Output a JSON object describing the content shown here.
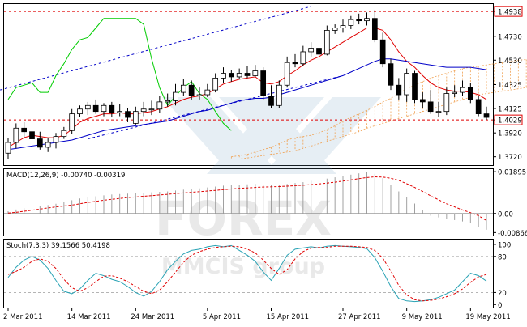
{
  "watermark": {
    "brand": "FOREX",
    "sub": "MMCIS group"
  },
  "chart_data": [
    {
      "type": "candlestick",
      "panel": "price",
      "ylim": [
        1.365,
        1.5
      ],
      "yticks": [
        "1.4938",
        "1.4730",
        "1.4530",
        "1.4325",
        "1.4125",
        "1.4029",
        "1.3920",
        "1.3720"
      ],
      "highlighted_levels": [
        {
          "label": "1.4938",
          "value": 1.4938
        },
        {
          "label": "1.4029",
          "value": 1.4029
        }
      ],
      "xticks": [
        {
          "label": "2 Mar 2011",
          "i": 0
        },
        {
          "label": "14 Mar 2011",
          "i": 8
        },
        {
          "label": "24 Mar 2011",
          "i": 16
        },
        {
          "label": "5 Apr 2011",
          "i": 25
        },
        {
          "label": "15 Apr 2011",
          "i": 33
        },
        {
          "label": "27 Apr 2011",
          "i": 42
        },
        {
          "label": "9 May 2011",
          "i": 50
        },
        {
          "label": "19 May 2011",
          "i": 58
        }
      ],
      "candles": {
        "open": [
          1.375,
          1.384,
          1.396,
          1.393,
          1.387,
          1.38,
          1.384,
          1.389,
          1.394,
          1.408,
          1.412,
          1.415,
          1.41,
          1.415,
          1.409,
          1.41,
          1.4,
          1.41,
          1.412,
          1.412,
          1.418,
          1.419,
          1.426,
          1.432,
          1.423,
          1.424,
          1.428,
          1.438,
          1.442,
          1.439,
          1.442,
          1.44,
          1.444,
          1.423,
          1.415,
          1.432,
          1.451,
          1.45,
          1.46,
          1.463,
          1.458,
          1.478,
          1.48,
          1.482,
          1.487,
          1.486,
          1.488,
          1.47,
          1.45,
          1.432,
          1.424,
          1.442,
          1.42,
          1.418,
          1.41,
          1.41,
          1.425,
          1.426,
          1.43,
          1.42,
          1.408
        ],
        "high": [
          1.388,
          1.4,
          1.401,
          1.398,
          1.393,
          1.388,
          1.392,
          1.397,
          1.412,
          1.415,
          1.418,
          1.42,
          1.417,
          1.418,
          1.416,
          1.413,
          1.414,
          1.418,
          1.419,
          1.423,
          1.425,
          1.433,
          1.437,
          1.436,
          1.43,
          1.433,
          1.442,
          1.447,
          1.445,
          1.446,
          1.448,
          1.449,
          1.447,
          1.432,
          1.436,
          1.456,
          1.458,
          1.465,
          1.468,
          1.467,
          1.482,
          1.483,
          1.487,
          1.49,
          1.492,
          1.493,
          1.495,
          1.476,
          1.454,
          1.438,
          1.446,
          1.444,
          1.426,
          1.428,
          1.418,
          1.43,
          1.432,
          1.436,
          1.434,
          1.423,
          1.414
        ],
        "low": [
          1.37,
          1.379,
          1.388,
          1.385,
          1.378,
          1.376,
          1.379,
          1.387,
          1.391,
          1.405,
          1.407,
          1.408,
          1.406,
          1.405,
          1.406,
          1.401,
          1.399,
          1.406,
          1.407,
          1.409,
          1.414,
          1.415,
          1.423,
          1.42,
          1.42,
          1.422,
          1.426,
          1.434,
          1.435,
          1.437,
          1.438,
          1.439,
          1.42,
          1.413,
          1.413,
          1.43,
          1.447,
          1.448,
          1.456,
          1.454,
          1.457,
          1.475,
          1.476,
          1.479,
          1.483,
          1.482,
          1.468,
          1.447,
          1.428,
          1.42,
          1.418,
          1.417,
          1.413,
          1.408,
          1.405,
          1.407,
          1.422,
          1.423,
          1.417,
          1.406,
          1.403
        ],
        "close": [
          1.384,
          1.396,
          1.393,
          1.387,
          1.38,
          1.384,
          1.389,
          1.394,
          1.408,
          1.412,
          1.415,
          1.41,
          1.415,
          1.409,
          1.41,
          1.405,
          1.41,
          1.412,
          1.412,
          1.418,
          1.419,
          1.426,
          1.432,
          1.423,
          1.424,
          1.428,
          1.438,
          1.442,
          1.439,
          1.442,
          1.44,
          1.444,
          1.423,
          1.415,
          1.432,
          1.451,
          1.45,
          1.46,
          1.463,
          1.458,
          1.478,
          1.48,
          1.482,
          1.487,
          1.486,
          1.488,
          1.47,
          1.45,
          1.432,
          1.424,
          1.442,
          1.42,
          1.418,
          1.41,
          1.41,
          1.425,
          1.426,
          1.43,
          1.42,
          1.408,
          1.405
        ]
      },
      "series": [
        {
          "color": "#e00000",
          "values": [
            1.38,
            1.384,
            1.388,
            1.39,
            1.389,
            1.388,
            1.388,
            1.39,
            1.395,
            1.401,
            1.404,
            1.406,
            1.408,
            1.408,
            1.409,
            1.408,
            1.408,
            1.409,
            1.41,
            1.412,
            1.414,
            1.417,
            1.42,
            1.422,
            1.423,
            1.425,
            1.429,
            1.433,
            1.435,
            1.437,
            1.438,
            1.439,
            1.434,
            1.433,
            1.435,
            1.44,
            1.444,
            1.449,
            1.453,
            1.456,
            1.46,
            1.464,
            1.468,
            1.472,
            1.476,
            1.48,
            1.48,
            1.478,
            1.47,
            1.46,
            1.452,
            1.447,
            1.44,
            1.434,
            1.43,
            1.428,
            1.427,
            1.427,
            1.426,
            1.424,
            1.42
          ]
        },
        {
          "color": "#0000c8",
          "values": [
            1.378,
            1.379,
            1.38,
            1.381,
            1.382,
            1.383,
            1.384,
            1.385,
            1.386,
            1.388,
            1.39,
            1.392,
            1.394,
            1.395,
            1.396,
            1.397,
            1.398,
            1.399,
            1.4,
            1.401,
            1.402,
            1.404,
            1.406,
            1.408,
            1.41,
            1.411,
            1.413,
            1.415,
            1.417,
            1.419,
            1.42,
            1.421,
            1.421,
            1.422,
            1.424,
            1.426,
            1.428,
            1.43,
            1.432,
            1.434,
            1.436,
            1.438,
            1.44,
            1.443,
            1.446,
            1.449,
            1.452,
            1.454,
            1.454,
            1.453,
            1.452,
            1.451,
            1.45,
            1.449,
            1.448,
            1.447,
            1.447,
            1.447,
            1.447,
            1.446,
            1.445
          ]
        },
        {
          "color": "#00cc00",
          "values": [
            1.42,
            1.43,
            1.432,
            1.434,
            1.426,
            1.426,
            1.44,
            1.45,
            1.462,
            1.47,
            1.472,
            1.48,
            1.488,
            1.488,
            1.488,
            1.488,
            1.488,
            1.483,
            1.454,
            1.43,
            1.415,
            1.423,
            1.43,
            1.435,
            1.425,
            1.42,
            1.41,
            1.4,
            1.394,
            null,
            null,
            null,
            null,
            null,
            null,
            null,
            null,
            null,
            null,
            null,
            null,
            null,
            null,
            null,
            null,
            null,
            null,
            null,
            null,
            null,
            null,
            null,
            null,
            null,
            null,
            null,
            null,
            null,
            null,
            null,
            null
          ]
        }
      ],
      "cloud": {
        "color": "#f0a050",
        "start_index": 28,
        "span_a": [
          1.372,
          1.373,
          1.374,
          1.376,
          1.378,
          1.38,
          1.383,
          1.386,
          1.388,
          1.389,
          1.39,
          1.392,
          1.395,
          1.398,
          1.402,
          1.405,
          1.408,
          1.411,
          1.414,
          1.418,
          1.421,
          1.425,
          1.429,
          1.432,
          1.435,
          1.438,
          1.44,
          1.442,
          1.444,
          1.446,
          1.447,
          1.448,
          1.449,
          1.45,
          1.451,
          1.452,
          1.453,
          1.4535,
          1.454,
          1.454,
          1.454,
          1.454,
          1.4535,
          1.453,
          1.452,
          1.451,
          1.45,
          1.448,
          1.446
        ],
        "span_b": [
          1.37,
          1.37,
          1.371,
          1.372,
          1.373,
          1.374,
          1.375,
          1.376,
          1.377,
          1.379,
          1.381,
          1.383,
          1.385,
          1.387,
          1.389,
          1.391,
          1.393,
          1.396,
          1.398,
          1.4,
          1.402,
          1.404,
          1.406,
          1.408,
          1.41,
          1.412,
          1.414,
          1.416,
          1.418,
          1.42,
          1.422,
          1.424,
          1.425,
          1.426,
          1.427,
          1.428,
          1.429,
          1.43,
          1.431,
          1.432,
          1.432,
          1.433,
          1.433,
          1.434,
          1.434,
          1.434,
          1.434,
          1.434,
          1.434
        ]
      },
      "trend_lines": [
        {
          "color": "#0000c8",
          "from": [
            -1,
            1.428
          ],
          "to": [
            38,
            1.498
          ]
        },
        {
          "color": "#0000c8",
          "from": [
            10,
            1.387
          ],
          "to": [
            42,
            1.44
          ]
        }
      ]
    },
    {
      "type": "histogram",
      "panel": "macd",
      "title": "MACD(12,26,9) -0.00740 -0.00319",
      "ylim": [
        -0.01,
        0.0201
      ],
      "yticks": [
        "0.01895",
        "0.00",
        "-0.00866"
      ],
      "zero_label": "0.00",
      "bar_color": "#a0a0a0",
      "values": [
        0.001,
        0.0018,
        0.0024,
        0.003,
        0.0034,
        0.0038,
        0.0044,
        0.0052,
        0.006,
        0.0068,
        0.0074,
        0.0078,
        0.0082,
        0.0086,
        0.0088,
        0.009,
        0.0092,
        0.0094,
        0.0096,
        0.0098,
        0.01,
        0.0104,
        0.0108,
        0.0112,
        0.0114,
        0.0118,
        0.0122,
        0.0126,
        0.0128,
        0.013,
        0.0132,
        0.0134,
        0.013,
        0.0128,
        0.013,
        0.0134,
        0.0138,
        0.0142,
        0.0148,
        0.0152,
        0.0158,
        0.0164,
        0.017,
        0.0176,
        0.0182,
        0.0188,
        0.018,
        0.016,
        0.013,
        0.01,
        0.0075,
        0.0045,
        0.0015,
        -0.001,
        -0.0018,
        -0.0025,
        -0.003,
        -0.0036,
        -0.0045,
        -0.006,
        -0.0074
      ],
      "signal": {
        "color": "#e00000",
        "values": [
          0.0002,
          0.0005,
          0.001,
          0.0015,
          0.002,
          0.0025,
          0.003,
          0.0034,
          0.0038,
          0.0044,
          0.005,
          0.0055,
          0.006,
          0.0064,
          0.0068,
          0.0072,
          0.0075,
          0.0078,
          0.0081,
          0.0084,
          0.0087,
          0.009,
          0.0093,
          0.0096,
          0.0099,
          0.0102,
          0.0105,
          0.0108,
          0.0111,
          0.0114,
          0.0116,
          0.0118,
          0.012,
          0.0121,
          0.0122,
          0.0124,
          0.0126,
          0.0128,
          0.0131,
          0.0134,
          0.0138,
          0.0142,
          0.0147,
          0.0152,
          0.0158,
          0.0163,
          0.0166,
          0.0165,
          0.016,
          0.015,
          0.0135,
          0.0118,
          0.01,
          0.008,
          0.0062,
          0.0044,
          0.003,
          0.0016,
          0.0004,
          -0.001,
          -0.0032
        ]
      }
    },
    {
      "type": "line",
      "panel": "stoch",
      "title": "Stoch(7,3,3) 39.1566 50.4198",
      "ylim": [
        -5,
        108
      ],
      "yticks": [
        "100",
        "80",
        "20",
        "0"
      ],
      "levels": [
        80,
        20
      ],
      "series": [
        {
          "color": "#2aa3b5",
          "values": [
            45,
            62,
            74,
            80,
            74,
            60,
            40,
            22,
            18,
            26,
            40,
            52,
            48,
            42,
            38,
            30,
            20,
            14,
            22,
            38,
            58,
            72,
            84,
            90,
            92,
            96,
            98,
            96,
            98,
            90,
            82,
            72,
            54,
            40,
            60,
            82,
            92,
            94,
            96,
            94,
            97,
            98,
            97,
            96,
            95,
            93,
            78,
            55,
            30,
            10,
            6,
            5,
            6,
            8,
            12,
            18,
            24,
            38,
            52,
            48,
            39
          ]
        },
        {
          "color": "#e00000",
          "values": [
            50,
            55,
            62,
            72,
            76,
            72,
            60,
            42,
            28,
            22,
            28,
            38,
            47,
            48,
            44,
            38,
            30,
            22,
            18,
            24,
            38,
            54,
            70,
            82,
            88,
            92,
            95,
            96,
            97,
            96,
            92,
            86,
            74,
            60,
            50,
            58,
            76,
            88,
            94,
            95,
            95,
            97,
            97,
            97,
            96,
            95,
            90,
            77,
            56,
            32,
            16,
            8,
            6,
            7,
            9,
            13,
            18,
            26,
            37,
            46,
            50
          ]
        }
      ]
    }
  ]
}
